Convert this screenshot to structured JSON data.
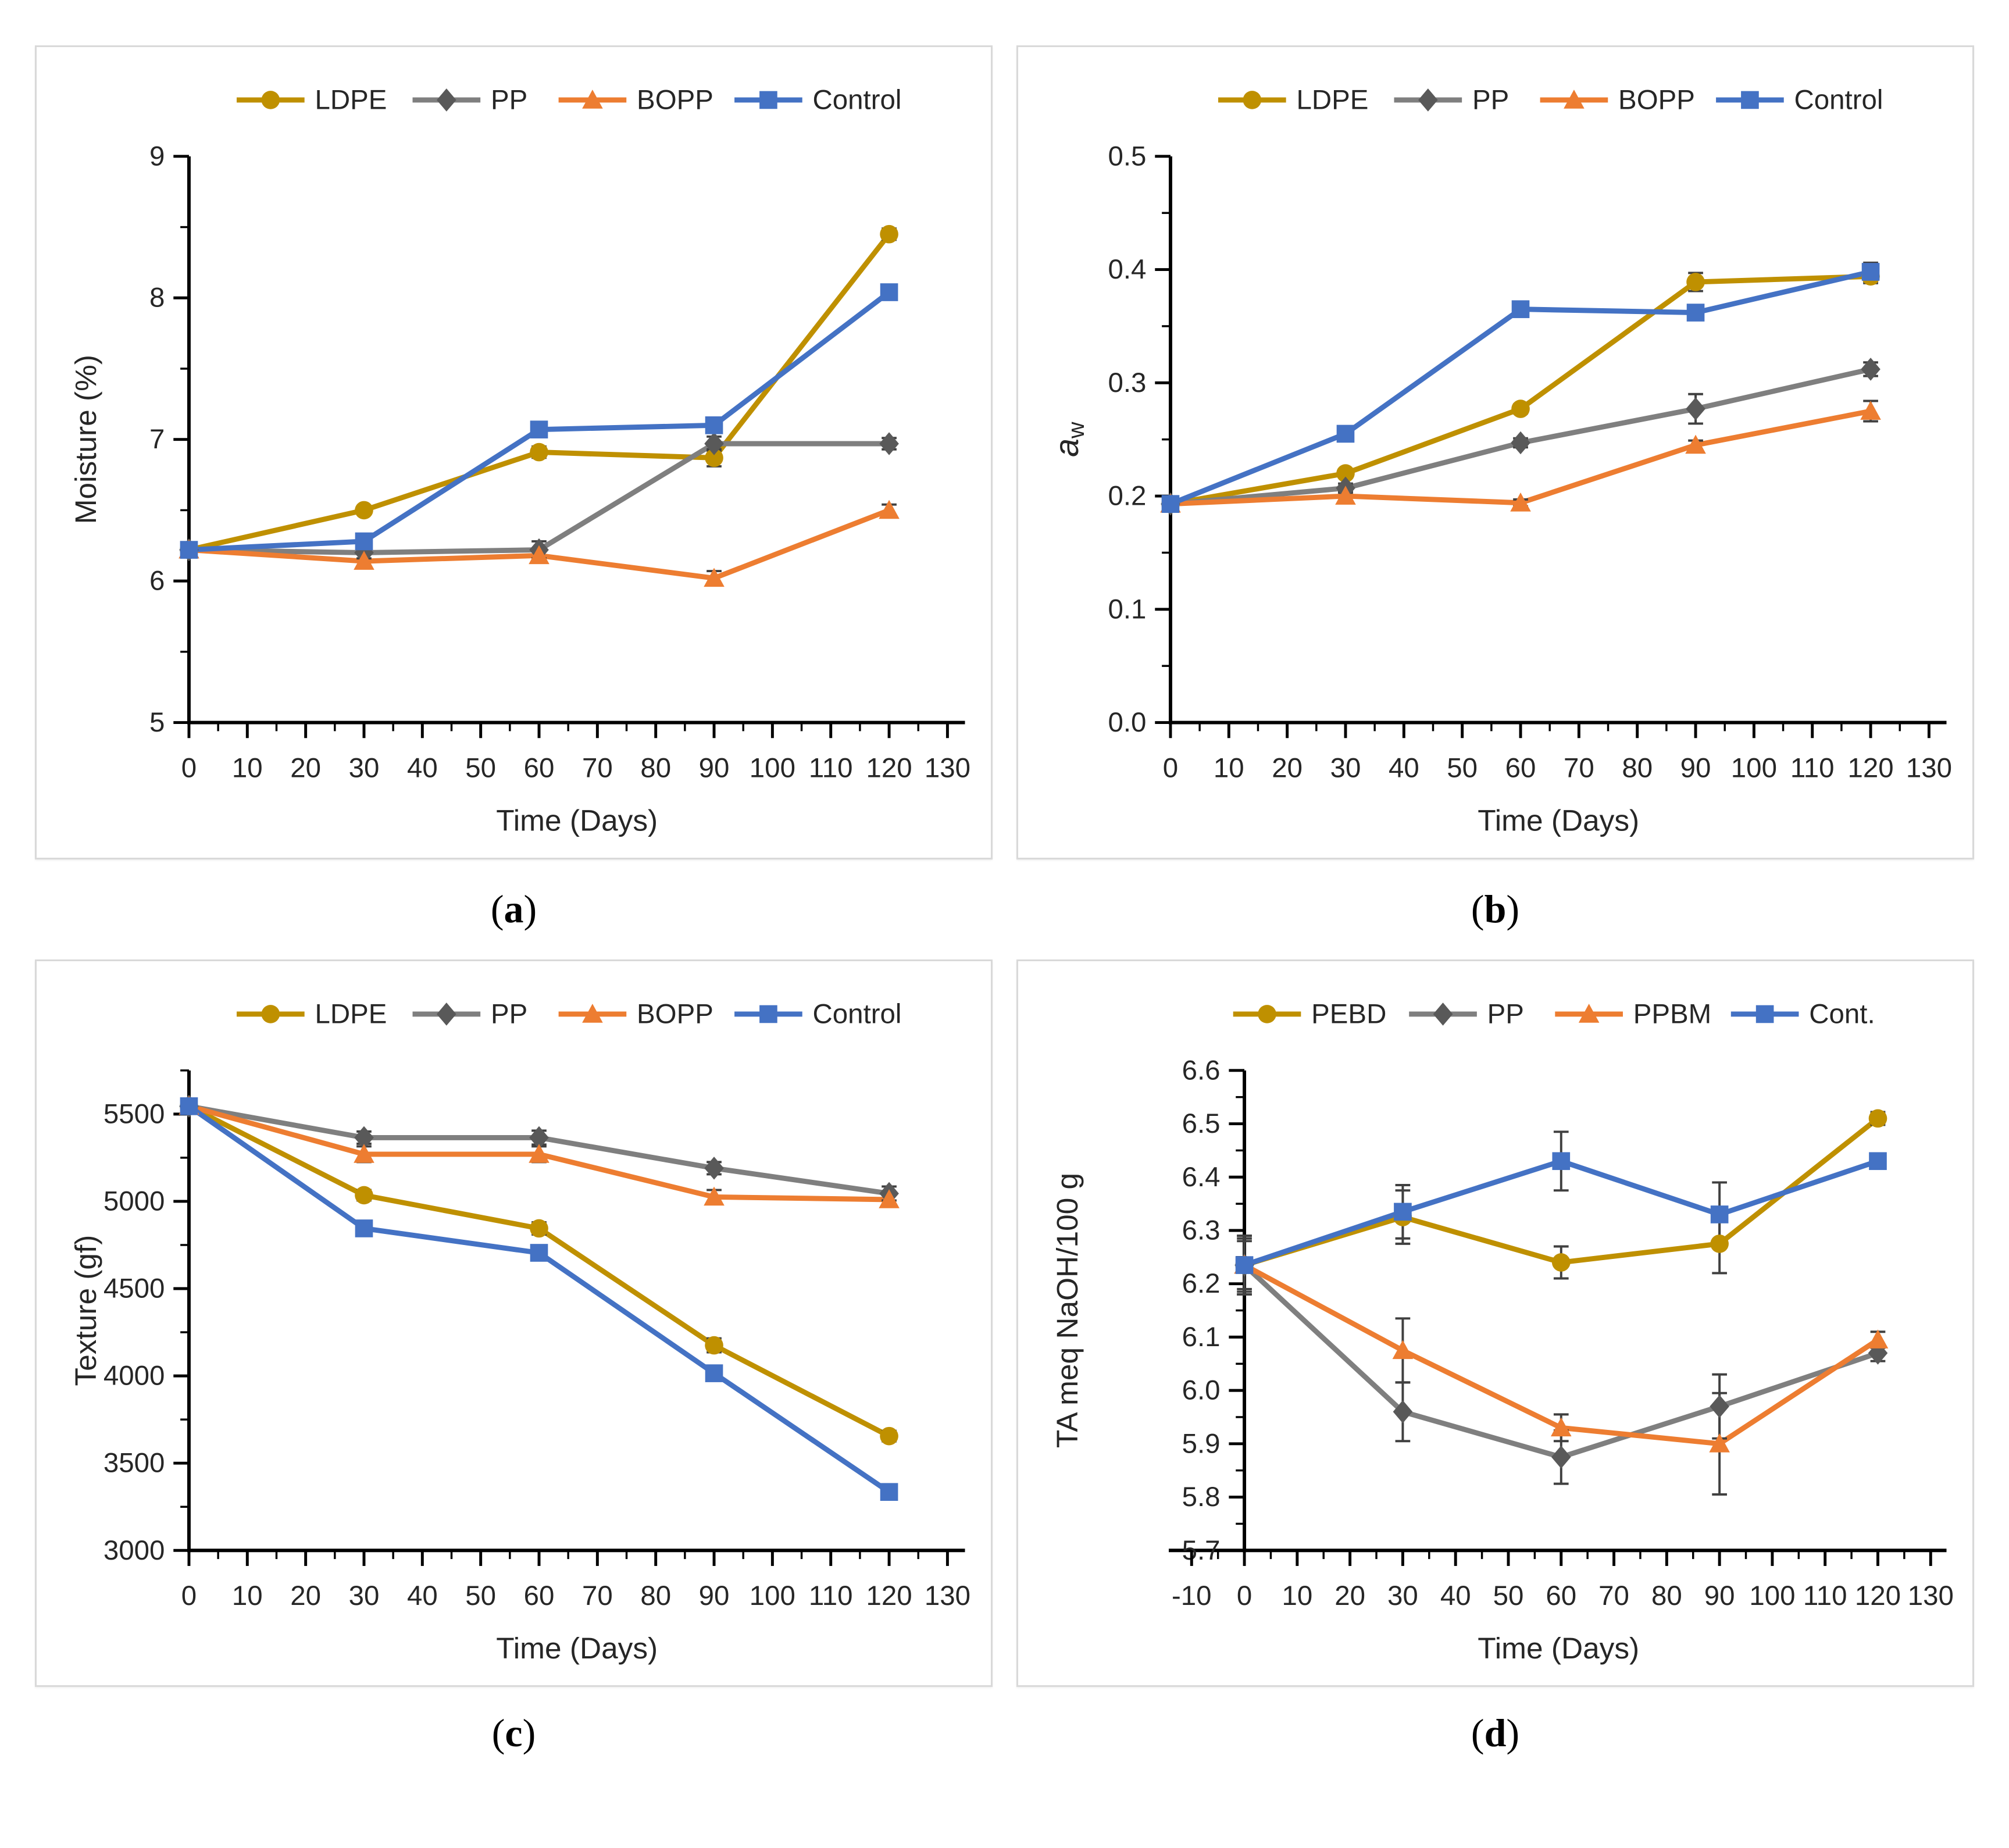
{
  "figure": {
    "background": "#ffffff",
    "panel_border_color": "#d9d9d9",
    "axis_color": "#000000",
    "text_color": "#262626",
    "error_bar_color": "#404040"
  },
  "chart_data": [
    {
      "type": "line",
      "panel_id": "a",
      "caption_open": "(",
      "caption_letter": "a",
      "caption_close": ")",
      "xlabel": "Time (Days)",
      "ylabel": "Moisture (%)",
      "x": [
        0,
        30,
        60,
        90,
        120
      ],
      "xlim": [
        0,
        133
      ],
      "x_tick_start": 0,
      "x_tick_end": 130,
      "x_major": 10,
      "x_minor": 5,
      "ylim": [
        5,
        9
      ],
      "y_major": 1,
      "y_minor": 0.5,
      "y_decimals": 0,
      "legend_position": "top",
      "grid": false,
      "series": [
        {
          "name": "LDPE",
          "color": "#BF9000",
          "marker": "circle",
          "values": [
            6.22,
            6.5,
            6.91,
            6.87,
            8.45
          ],
          "errors": [
            0.03,
            0.03,
            0.04,
            0.06,
            0.04
          ]
        },
        {
          "name": "PP",
          "color": "#7F7F7F",
          "marker": "diamond",
          "marker_color": "#595959",
          "values": [
            6.22,
            6.2,
            6.22,
            6.97,
            6.97
          ],
          "errors": [
            0.03,
            0.04,
            0.06,
            0.05,
            0.04
          ]
        },
        {
          "name": "BOPP",
          "color": "#ED7D31",
          "marker": "triangle",
          "values": [
            6.22,
            6.14,
            6.18,
            6.02,
            6.5
          ],
          "errors": [
            0.03,
            0.05,
            0.04,
            0.05,
            0.04
          ]
        },
        {
          "name": "Control",
          "color": "#4472C4",
          "marker": "square",
          "values": [
            6.22,
            6.28,
            7.07,
            7.1,
            8.04
          ],
          "errors": [
            0.03,
            0.03,
            0.03,
            0.04,
            0.03
          ]
        }
      ]
    },
    {
      "type": "line",
      "panel_id": "b",
      "caption_open": "(",
      "caption_letter": "b",
      "caption_close": ")",
      "xlabel": "Time (Days)",
      "ylabel": "aw",
      "ylabel_parts": {
        "main": "a",
        "sub": "w",
        "italic": true
      },
      "x": [
        0,
        30,
        60,
        90,
        120
      ],
      "xlim": [
        0,
        133
      ],
      "x_tick_start": 0,
      "x_tick_end": 130,
      "x_major": 10,
      "x_minor": 5,
      "ylim": [
        0,
        0.5
      ],
      "y_major": 0.1,
      "y_minor": 0.05,
      "y_decimals": 1,
      "legend_position": "top",
      "grid": false,
      "series": [
        {
          "name": "LDPE",
          "color": "#BF9000",
          "marker": "circle",
          "values": [
            0.193,
            0.22,
            0.277,
            0.389,
            0.394
          ],
          "errors": [
            0.003,
            0.003,
            0.004,
            0.008,
            0.006
          ]
        },
        {
          "name": "PP",
          "color": "#7F7F7F",
          "marker": "diamond",
          "marker_color": "#595959",
          "values": [
            0.193,
            0.207,
            0.247,
            0.277,
            0.312
          ],
          "errors": [
            0.003,
            0.004,
            0.004,
            0.013,
            0.006
          ]
        },
        {
          "name": "BOPP",
          "color": "#ED7D31",
          "marker": "triangle",
          "values": [
            0.193,
            0.2,
            0.194,
            0.245,
            0.275
          ],
          "errors": [
            0.003,
            0.004,
            0.003,
            0.004,
            0.009
          ]
        },
        {
          "name": "Control",
          "color": "#4472C4",
          "marker": "square",
          "values": [
            0.193,
            0.255,
            0.365,
            0.362,
            0.398
          ],
          "errors": [
            0.004,
            0.003,
            0.004,
            0.004,
            0.008
          ]
        }
      ]
    },
    {
      "type": "line",
      "panel_id": "c",
      "caption_open": "(",
      "caption_letter": "c",
      "caption_close": ")",
      "xlabel": "Time (Days)",
      "ylabel": "Texture (gf)",
      "x": [
        0,
        30,
        60,
        90,
        120
      ],
      "xlim": [
        0,
        133
      ],
      "x_tick_start": 0,
      "x_tick_end": 130,
      "x_major": 10,
      "x_minor": 5,
      "ylim": [
        3000,
        5750
      ],
      "y_major": 500,
      "y_minor": 250,
      "y_decimals": 0,
      "legend_position": "top",
      "grid": false,
      "series": [
        {
          "name": "LDPE",
          "color": "#BF9000",
          "marker": "circle",
          "values": [
            5545,
            5035,
            4845,
            4175,
            3655
          ],
          "errors": [
            30,
            30,
            35,
            40,
            30
          ]
        },
        {
          "name": "PP",
          "color": "#7F7F7F",
          "marker": "diamond",
          "marker_color": "#595959",
          "values": [
            5545,
            5365,
            5365,
            5190,
            5045
          ],
          "errors": [
            30,
            35,
            40,
            35,
            40
          ]
        },
        {
          "name": "BOPP",
          "color": "#ED7D31",
          "marker": "triangle",
          "values": [
            5545,
            5270,
            5270,
            5025,
            5010
          ],
          "errors": [
            30,
            45,
            45,
            40,
            35
          ]
        },
        {
          "name": "Control",
          "color": "#4472C4",
          "marker": "square",
          "values": [
            5545,
            4845,
            4705,
            4015,
            3335
          ],
          "errors": [
            30,
            25,
            30,
            25,
            25
          ]
        }
      ]
    },
    {
      "type": "line",
      "panel_id": "d",
      "caption_open": "(",
      "caption_letter": "d",
      "caption_close": ")",
      "xlabel": "Time (Days)",
      "ylabel": "TA meq NaOH/100 g",
      "x": [
        0,
        30,
        60,
        90,
        120
      ],
      "xlim": [
        -14,
        133
      ],
      "x_tick_start": -10,
      "x_tick_end": 130,
      "x_major": 10,
      "x_minor": 5,
      "y_axis_at": 0,
      "ylim": [
        5.7,
        6.6
      ],
      "y_major": 0.1,
      "y_minor": 0.05,
      "y_decimals": 1,
      "legend_position": "top",
      "grid": false,
      "series": [
        {
          "name": "PEBD",
          "color": "#BF9000",
          "marker": "circle",
          "values": [
            6.235,
            6.325,
            6.24,
            6.275,
            6.51
          ],
          "errors": [
            0.05,
            0.05,
            0.03,
            0.055,
            0.012
          ]
        },
        {
          "name": "PP",
          "color": "#7F7F7F",
          "marker": "diamond",
          "marker_color": "#595959",
          "values": [
            6.235,
            5.96,
            5.875,
            5.97,
            6.07
          ],
          "errors": [
            0.055,
            0.055,
            0.05,
            0.06,
            0.015
          ]
        },
        {
          "name": "PPBM",
          "color": "#ED7D31",
          "marker": "triangle",
          "values": [
            6.235,
            6.075,
            5.93,
            5.9,
            6.095
          ],
          "errors": [
            0.045,
            0.06,
            0.025,
            0.095,
            0.015
          ]
        },
        {
          "name": "Cont.",
          "color": "#4472C4",
          "marker": "square",
          "values": [
            6.235,
            6.335,
            6.43,
            6.33,
            6.43
          ],
          "errors": [
            0.055,
            0.05,
            0.055,
            0.06,
            0.012
          ]
        }
      ]
    }
  ]
}
